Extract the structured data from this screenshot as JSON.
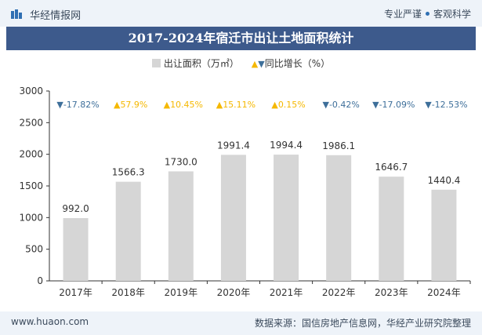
{
  "header": {
    "brand": "华经情报网",
    "tagline_left": "专业严谨",
    "tagline_right": "客观科学"
  },
  "title": "2017-2024年宿迁市出让土地面积统计",
  "legend": {
    "series1": "出让面积（万㎡）",
    "series2": "同比增长（%）"
  },
  "footer": {
    "website": "www.huaon.com",
    "source": "数据来源：国信房地产信息网，华经产业研究院整理"
  },
  "colors": {
    "bar": "#d6d6d6",
    "up": "#f5b800",
    "down": "#3e6f9a",
    "title_bg": "#3d5a8c"
  },
  "chart_data": {
    "type": "bar",
    "categories": [
      "2017年",
      "2018年",
      "2019年",
      "2020年",
      "2021年",
      "2022年",
      "2023年",
      "2024年"
    ],
    "series": [
      {
        "name": "出让面积（万㎡）",
        "values": [
          992.0,
          1566.3,
          1730.0,
          1991.4,
          1994.4,
          1986.1,
          1646.7,
          1440.4
        ],
        "labels": [
          "992.0",
          "1566.3",
          "1730.0",
          "1991.4",
          "1994.4",
          "1986.1",
          "1646.7",
          "1440.4"
        ]
      },
      {
        "name": "同比增长（%）",
        "values": [
          -17.82,
          57.9,
          10.45,
          15.11,
          0.15,
          -0.42,
          -17.09,
          -12.53
        ],
        "labels": [
          "-17.82%",
          "57.9%",
          "10.45%",
          "15.11%",
          "0.15%",
          "-0.42%",
          "-17.09%",
          "-12.53%"
        ]
      }
    ],
    "ylim": [
      0,
      3000
    ],
    "yticks": [
      "0",
      "500",
      "1000",
      "1500",
      "2000",
      "2500",
      "3000"
    ],
    "grid": false
  }
}
